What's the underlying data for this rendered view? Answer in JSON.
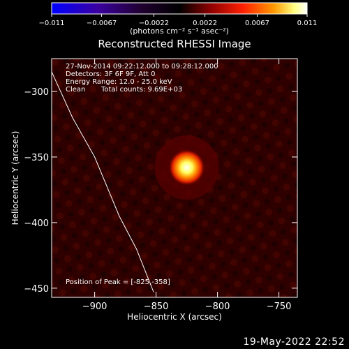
{
  "chart_data": {
    "type": "heatmap",
    "title": "Reconstructed RHESSI Image",
    "xlabel": "Heliocentric X (arcsec)",
    "ylabel": "Heliocentric Y (arcsec)",
    "xlim": [
      -935,
      -735
    ],
    "ylim": [
      -457,
      -275
    ],
    "x_ticks": [
      -900,
      -850,
      -800,
      -750
    ],
    "x_tick_labels": [
      "−900",
      "−850",
      "−800",
      "−750"
    ],
    "y_ticks": [
      -300,
      -350,
      -400,
      -450
    ],
    "y_tick_labels": [
      "−300",
      "−350",
      "−400",
      "−450"
    ],
    "colorbar": {
      "range": [
        -0.011,
        0.011
      ],
      "ticks": [
        -0.011,
        -0.0067,
        -0.0022,
        0.0022,
        0.0067,
        0.011
      ],
      "tick_labels": [
        "−0.011",
        "−0.0067",
        "−0.0022",
        "0.0022",
        "0.0067",
        "0.011"
      ],
      "units_label": "(photons cm⁻² s⁻¹ asec⁻²)",
      "colormap": [
        "#0000ff",
        "#3a0070",
        "#000000",
        "#8b0000",
        "#ff2000",
        "#ff9900",
        "#ffff80",
        "#ffffff"
      ]
    },
    "annotations": {
      "time_range": "27-Nov-2014 09:22:12.000 to 09:28:12.000",
      "detectors": "Detectors: 3F 6F 9F, Att 0",
      "energy": "Energy Range: 12.0 - 25.0 keV",
      "clean": "Clean",
      "counts": "Total counts: 9.69E+03",
      "peak_label": "Position of Peak = [-825,-358]"
    },
    "peak": {
      "x": -825,
      "y": -358
    },
    "limb_curve": [
      [
        -935,
        -285
      ],
      [
        -918,
        -320
      ],
      [
        -900,
        -350
      ],
      [
        -880,
        -395
      ],
      [
        -866,
        -420
      ],
      [
        -852,
        -453
      ]
    ]
  },
  "timestamp": "19-May-2022 22:52"
}
